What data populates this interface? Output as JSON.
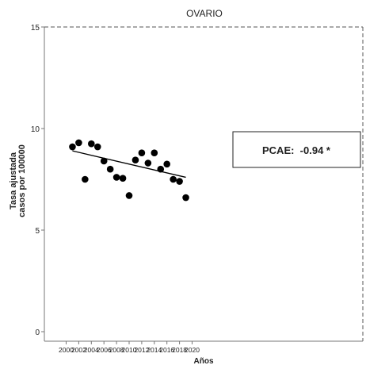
{
  "chart_data": {
    "type": "scatter",
    "title": "OVARIO",
    "xlabel": "Años",
    "ylabel_line1": "Tasa ajustada",
    "ylabel_line2": "casos por 100000",
    "xlim": [
      2000,
      2020
    ],
    "ylim": [
      0,
      15
    ],
    "x_ticks": [
      2000,
      2002,
      2004,
      2006,
      2008,
      2010,
      2012,
      2014,
      2016,
      2018,
      2020
    ],
    "y_ticks": [
      0,
      5,
      10,
      15
    ],
    "grid": false,
    "points": [
      {
        "x": 2001,
        "y": 9.1
      },
      {
        "x": 2002,
        "y": 9.3
      },
      {
        "x": 2003,
        "y": 7.5
      },
      {
        "x": 2004,
        "y": 9.25
      },
      {
        "x": 2005,
        "y": 9.1
      },
      {
        "x": 2006,
        "y": 8.4
      },
      {
        "x": 2007,
        "y": 8.0
      },
      {
        "x": 2008,
        "y": 7.6
      },
      {
        "x": 2009,
        "y": 7.55
      },
      {
        "x": 2010,
        "y": 6.7
      },
      {
        "x": 2011,
        "y": 8.45
      },
      {
        "x": 2012,
        "y": 8.8
      },
      {
        "x": 2013,
        "y": 8.3
      },
      {
        "x": 2014,
        "y": 8.8
      },
      {
        "x": 2015,
        "y": 8.0
      },
      {
        "x": 2016,
        "y": 8.25
      },
      {
        "x": 2017,
        "y": 7.5
      },
      {
        "x": 2018,
        "y": 7.4
      },
      {
        "x": 2019,
        "y": 6.6
      }
    ],
    "trend_line": {
      "x": [
        2001,
        2019
      ],
      "y": [
        8.9,
        7.6
      ]
    },
    "annotation": "PCAE:  -0.94 *",
    "colors": {
      "points": "#000000",
      "line": "#000000",
      "axis": "#777777"
    }
  }
}
